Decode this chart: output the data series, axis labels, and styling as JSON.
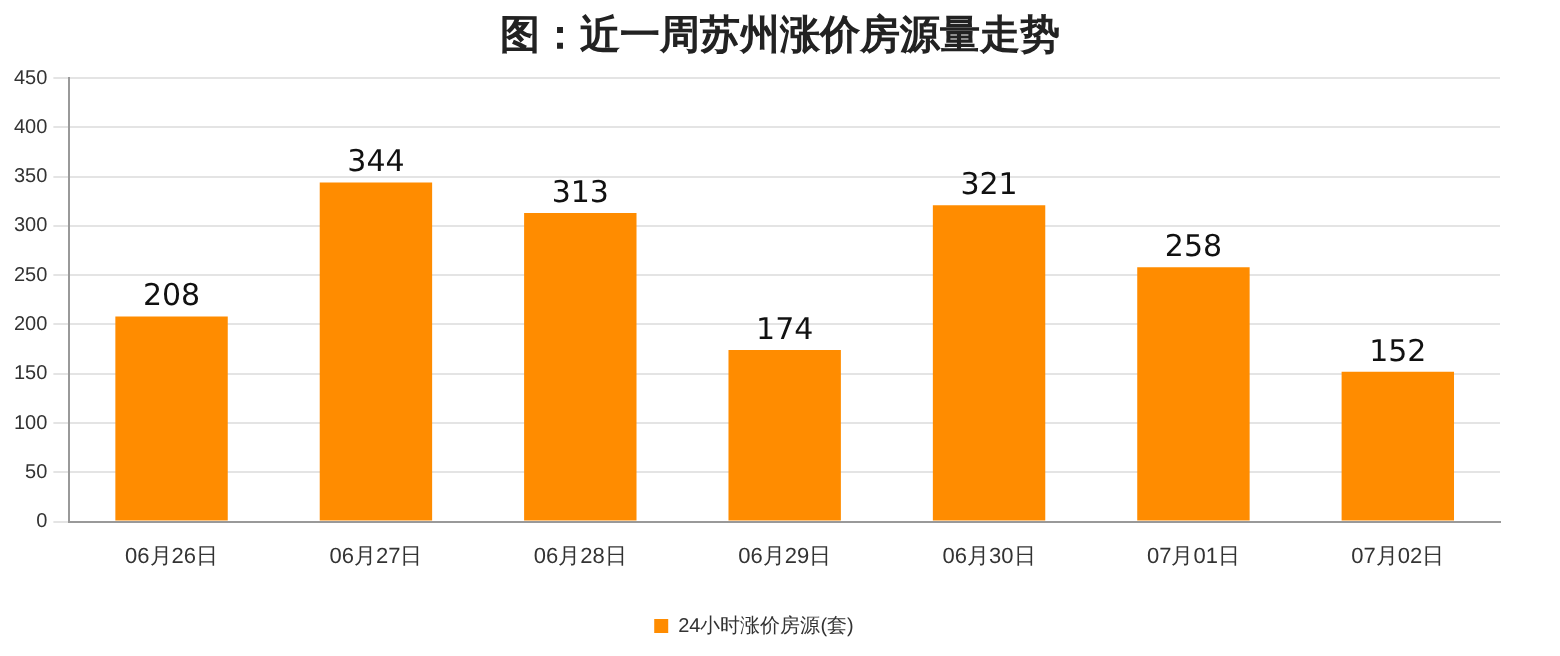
{
  "chart_data": {
    "type": "bar",
    "title": "图：近一周苏州涨价房源量走势",
    "categories": [
      "06月26日",
      "06月27日",
      "06月28日",
      "06月29日",
      "06月30日",
      "07月01日",
      "07月02日"
    ],
    "series": [
      {
        "name": "24小时涨价房源(套)",
        "color": "#ff8c00",
        "values": [
          208,
          344,
          313,
          174,
          321,
          258,
          152
        ]
      }
    ],
    "ylim": [
      0,
      450
    ],
    "yticks": [
      0,
      50,
      100,
      150,
      200,
      250,
      300,
      350,
      400,
      450
    ],
    "grid": "y",
    "legend": "bottom",
    "data_labels": true
  }
}
